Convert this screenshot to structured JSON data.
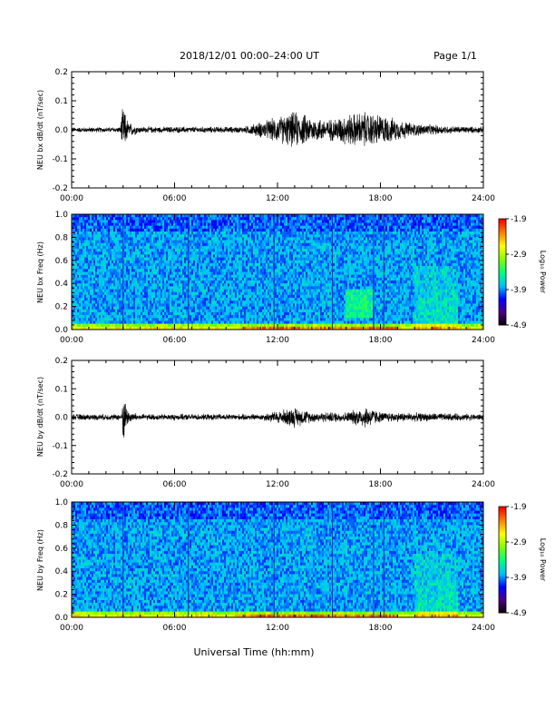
{
  "header": {
    "title": "2018/12/01  00:00–24:00 UT",
    "page": "Page 1/1"
  },
  "xlabel": "Universal Time (hh:mm)",
  "time_ticks": [
    "00:00",
    "06:00",
    "12:00",
    "18:00",
    "24:00"
  ],
  "colorbar": {
    "label": "Log₁₀ Power",
    "ticks": [
      "-1.9",
      "-2.9",
      "-3.9",
      "-4.9"
    ],
    "colors": [
      "#000000",
      "#4b0082",
      "#0000ff",
      "#00bfff",
      "#00ff7f",
      "#7fff00",
      "#ffff00",
      "#ff7f00",
      "#ff0000"
    ]
  },
  "chart_data": [
    {
      "type": "line",
      "ylabel": "NEU bx dB/dt (nT/sec)",
      "xlim": [
        0,
        24
      ],
      "ylim": [
        -0.2,
        0.2
      ],
      "yticks": [
        "0.2",
        "0.1",
        "0.0",
        "-0.1",
        "-0.2"
      ],
      "envelope": [
        {
          "t": 0,
          "a": 0.01
        },
        {
          "t": 2.8,
          "a": 0.01
        },
        {
          "t": 3.0,
          "a": 0.09
        },
        {
          "t": 3.3,
          "a": 0.03
        },
        {
          "t": 4,
          "a": 0.012
        },
        {
          "t": 10,
          "a": 0.012
        },
        {
          "t": 11,
          "a": 0.03
        },
        {
          "t": 12,
          "a": 0.05
        },
        {
          "t": 13,
          "a": 0.07
        },
        {
          "t": 14,
          "a": 0.05
        },
        {
          "t": 15,
          "a": 0.04
        },
        {
          "t": 16,
          "a": 0.06
        },
        {
          "t": 17,
          "a": 0.07
        },
        {
          "t": 18,
          "a": 0.06
        },
        {
          "t": 19,
          "a": 0.04
        },
        {
          "t": 20,
          "a": 0.025
        },
        {
          "t": 22,
          "a": 0.015
        },
        {
          "t": 24,
          "a": 0.012
        }
      ]
    },
    {
      "type": "heatmap",
      "ylabel": "NEU bx Freq (Hz)",
      "xlim": [
        0,
        24
      ],
      "ylim": [
        0.0,
        1.0
      ],
      "yticks": [
        "1.0",
        "0.8",
        "0.6",
        "0.4",
        "0.2",
        "0.0"
      ],
      "clim": [
        -4.9,
        -1.9
      ]
    },
    {
      "type": "line",
      "ylabel": "NEU by dB/dt (nT/sec)",
      "xlim": [
        0,
        24
      ],
      "ylim": [
        -0.2,
        0.2
      ],
      "yticks": [
        "0.2",
        "0.1",
        "0.0",
        "-0.1",
        "-0.2"
      ],
      "envelope": [
        {
          "t": 0,
          "a": 0.012
        },
        {
          "t": 2.9,
          "a": 0.012
        },
        {
          "t": 3.0,
          "a": 0.1
        },
        {
          "t": 3.3,
          "a": 0.025
        },
        {
          "t": 4,
          "a": 0.012
        },
        {
          "t": 11,
          "a": 0.012
        },
        {
          "t": 12,
          "a": 0.025
        },
        {
          "t": 13,
          "a": 0.04
        },
        {
          "t": 14,
          "a": 0.02
        },
        {
          "t": 16,
          "a": 0.02
        },
        {
          "t": 17.2,
          "a": 0.045
        },
        {
          "t": 18,
          "a": 0.02
        },
        {
          "t": 24,
          "a": 0.012
        }
      ]
    },
    {
      "type": "heatmap",
      "ylabel": "NEU by Freq (Hz)",
      "xlim": [
        0,
        24
      ],
      "ylim": [
        0.0,
        1.0
      ],
      "yticks": [
        "1.0",
        "0.8",
        "0.6",
        "0.4",
        "0.2",
        "0.0"
      ],
      "clim": [
        -4.9,
        -1.9
      ]
    }
  ]
}
